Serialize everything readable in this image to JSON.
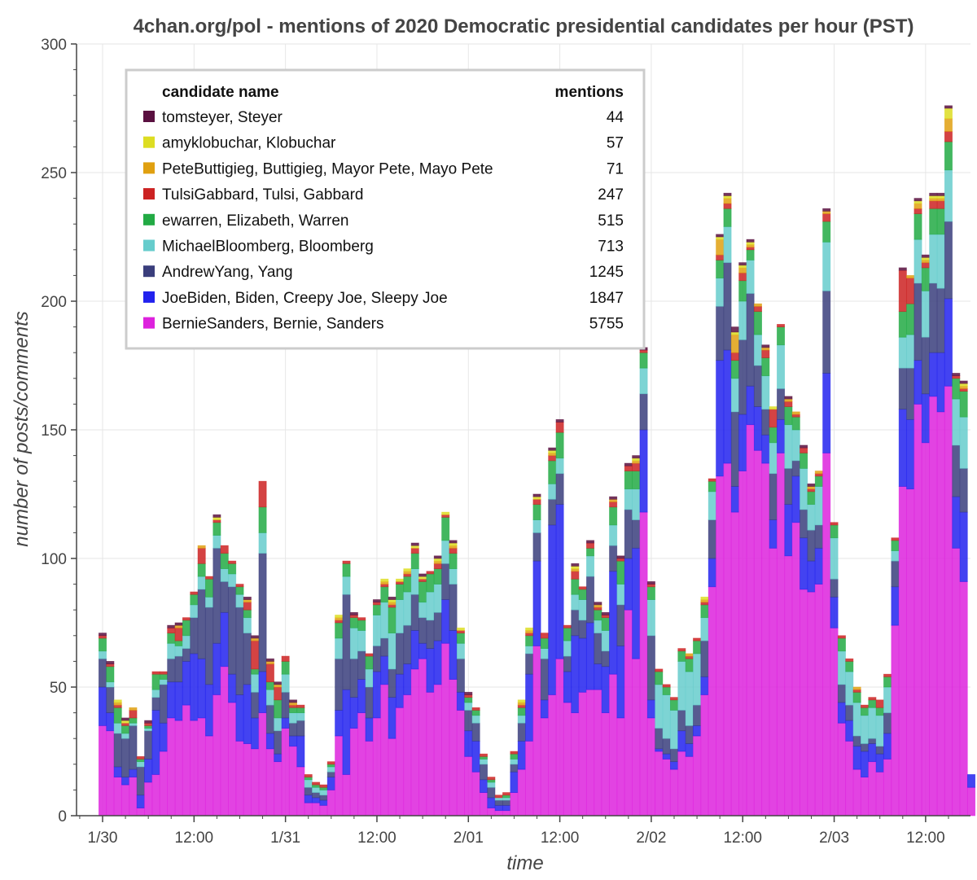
{
  "chart_data": {
    "type": "bar",
    "stacked": true,
    "title": "4chan.org/pol - mentions of 2020 Democratic presidential candidates per hour (PST)",
    "xlabel": "time",
    "ylabel": "number of posts/comments",
    "ylim": [
      0,
      300
    ],
    "yticks": [
      0,
      50,
      100,
      150,
      200,
      250,
      300
    ],
    "xticks": [
      {
        "label": "1/30",
        "hour": 0
      },
      {
        "label": "12:00",
        "hour": 12
      },
      {
        "label": "1/31",
        "hour": 24
      },
      {
        "label": "12:00",
        "hour": 36
      },
      {
        "label": "2/01",
        "hour": 48
      },
      {
        "label": "12:00",
        "hour": 60
      },
      {
        "label": "2/02",
        "hour": 72
      },
      {
        "label": "12:00",
        "hour": 84
      },
      {
        "label": "2/03",
        "hour": 96
      },
      {
        "label": "12:00",
        "hour": 108
      }
    ],
    "x_unit": "hours since 1/30 00:00 (PST)",
    "grid": true,
    "legend": {
      "position": "top-left",
      "header_name": "candidate name",
      "header_count": "mentions"
    },
    "series": [
      {
        "name": "BernieSanders, Bernie, Sanders",
        "mentions": "5755",
        "color": "#dd22dd",
        "values": [
          35,
          33,
          15,
          12,
          15,
          3,
          13,
          16,
          25,
          38,
          37,
          43,
          37,
          38,
          31,
          47,
          58,
          44,
          29,
          28,
          26,
          40,
          26,
          21,
          34,
          27,
          19,
          5,
          5,
          4,
          10,
          31,
          16,
          34,
          40,
          29,
          38,
          51,
          30,
          42,
          47,
          57,
          61,
          48,
          51,
          67,
          53,
          41,
          23,
          17,
          9,
          3,
          2,
          2,
          9,
          18,
          29,
          66,
          38,
          47,
          61,
          44,
          40,
          48,
          49,
          49,
          40,
          55,
          38,
          80,
          61,
          118,
          38,
          25,
          22,
          18,
          25,
          23,
          31,
          47,
          89,
          132,
          137,
          118,
          134,
          152,
          142,
          137,
          104,
          141,
          101,
          114,
          88,
          87,
          90,
          141,
          73,
          36,
          29,
          18,
          15,
          21,
          17,
          22,
          74,
          128,
          127,
          160,
          145,
          163,
          157,
          167,
          104,
          91,
          11
        ]
      },
      {
        "name": "JoeBiden, Biden, Creepy Joe, Sleepy Joe",
        "mentions": "1847",
        "color": "#2222ee",
        "values": [
          15,
          7,
          4,
          3,
          3,
          5,
          9,
          25,
          11,
          14,
          15,
          17,
          26,
          23,
          20,
          20,
          21,
          11,
          18,
          23,
          12,
          16,
          6,
          3,
          4,
          4,
          12,
          3,
          2,
          2,
          5,
          10,
          33,
          12,
          13,
          9,
          18,
          11,
          16,
          13,
          12,
          15,
          6,
          17,
          17,
          17,
          19,
          7,
          10,
          12,
          5,
          4,
          2,
          2,
          8,
          11,
          26,
          33,
          7,
          66,
          60,
          12,
          30,
          21,
          26,
          10,
          18,
          40,
          28,
          20,
          43,
          32,
          7,
          1,
          2,
          3,
          8,
          5,
          4,
          7,
          11,
          45,
          44,
          10,
          22,
          15,
          17,
          11,
          11,
          13,
          20,
          18,
          20,
          12,
          14,
          31,
          12,
          8,
          8,
          9,
          10,
          7,
          7,
          10,
          15,
          30,
          27,
          17,
          19,
          17,
          23,
          34,
          20,
          27,
          5
        ]
      },
      {
        "name": "AndrewYang, Yang",
        "mentions": "1245",
        "color": "#3a3e7c",
        "values": [
          11,
          10,
          13,
          15,
          17,
          11,
          11,
          5,
          15,
          9,
          10,
          5,
          14,
          27,
          30,
          37,
          12,
          34,
          34,
          20,
          10,
          46,
          11,
          9,
          10,
          5,
          6,
          3,
          2,
          2,
          2,
          20,
          37,
          15,
          11,
          12,
          10,
          7,
          11,
          16,
          15,
          14,
          10,
          11,
          11,
          14,
          18,
          13,
          8,
          7,
          6,
          4,
          2,
          2,
          3,
          7,
          8,
          11,
          16,
          10,
          12,
          6,
          10,
          7,
          18,
          12,
          6,
          10,
          16,
          19,
          11,
          14,
          25,
          8,
          6,
          5,
          8,
          7,
          8,
          14,
          15,
          21,
          34,
          29,
          29,
          36,
          16,
          10,
          18,
          12,
          14,
          6,
          11,
          12,
          9,
          32,
          7,
          7,
          6,
          4,
          3,
          2,
          3,
          8,
          10,
          16,
          20,
          30,
          22,
          27,
          25,
          30,
          20,
          17,
          0
        ]
      },
      {
        "name": "MichaelBloomberg, Bloomberg",
        "mentions": "713",
        "color": "#66cccc",
        "values": [
          3,
          2,
          4,
          2,
          1,
          2,
          1,
          3,
          2,
          6,
          4,
          5,
          5,
          5,
          4,
          5,
          5,
          5,
          5,
          6,
          7,
          8,
          6,
          5,
          7,
          4,
          3,
          3,
          2,
          2,
          2,
          8,
          7,
          12,
          8,
          7,
          12,
          14,
          14,
          13,
          13,
          10,
          6,
          11,
          11,
          9,
          6,
          6,
          3,
          3,
          2,
          2,
          1,
          1,
          2,
          3,
          3,
          5,
          4,
          6,
          6,
          6,
          6,
          8,
          8,
          5,
          8,
          8,
          8,
          8,
          12,
          10,
          14,
          17,
          17,
          15,
          19,
          21,
          20,
          9,
          11,
          11,
          14,
          13,
          15,
          13,
          12,
          13,
          12,
          17,
          17,
          12,
          16,
          10,
          15,
          19,
          16,
          13,
          13,
          13,
          11,
          12,
          12,
          10,
          4,
          12,
          13,
          17,
          18,
          19,
          21,
          20,
          18,
          20,
          0
        ]
      },
      {
        "name": "ewarren, Elizabeth, Warren",
        "mentions": "515",
        "color": "#22aa44",
        "values": [
          5,
          6,
          6,
          3,
          2,
          1,
          1,
          6,
          2,
          4,
          2,
          6,
          4,
          5,
          7,
          5,
          6,
          4,
          3,
          3,
          2,
          10,
          3,
          7,
          5,
          2,
          2,
          1,
          1,
          1,
          1,
          6,
          5,
          4,
          4,
          5,
          4,
          6,
          10,
          6,
          6,
          6,
          8,
          7,
          6,
          9,
          6,
          4,
          2,
          2,
          1,
          1,
          0,
          1,
          2,
          3,
          4,
          6,
          4,
          9,
          10,
          5,
          6,
          4,
          3,
          4,
          5,
          7,
          9,
          7,
          7,
          6,
          5,
          5,
          3,
          4,
          4,
          5,
          5,
          5,
          4,
          7,
          7,
          7,
          8,
          4,
          9,
          7,
          6,
          7,
          7,
          5,
          6,
          5,
          4,
          8,
          5,
          5,
          4,
          4,
          3,
          3,
          3,
          4,
          4,
          10,
          12,
          10,
          9,
          10,
          10,
          11,
          8,
          10,
          0
        ]
      },
      {
        "name": "TulsiGabbard, Tulsi, Gabbard",
        "mentions": "247",
        "color": "#cc2222",
        "values": [
          1,
          1,
          1,
          1,
          3,
          1,
          1,
          1,
          1,
          2,
          5,
          1,
          1,
          6,
          1,
          1,
          3,
          1,
          1,
          3,
          11,
          10,
          7,
          5,
          2,
          1,
          1,
          1,
          1,
          1,
          1,
          1,
          1,
          1,
          1,
          1,
          1,
          1,
          1,
          1,
          1,
          2,
          1,
          1,
          2,
          1,
          2,
          1,
          1,
          1,
          1,
          1,
          1,
          1,
          1,
          1,
          1,
          2,
          2,
          2,
          4,
          1,
          3,
          1,
          2,
          1,
          1,
          2,
          1,
          2,
          3,
          1,
          1,
          1,
          1,
          1,
          1,
          1,
          1,
          1,
          1,
          2,
          2,
          3,
          3,
          1,
          2,
          3,
          7,
          1,
          2,
          1,
          2,
          1,
          1,
          3,
          1,
          1,
          1,
          1,
          1,
          1,
          3,
          1,
          1,
          16,
          10,
          2,
          2,
          3,
          3,
          4,
          1,
          1,
          0
        ]
      },
      {
        "name": "PeteButtigieg, Buttigieg, Mayor Pete, Mayo Pete",
        "mentions": "71",
        "color": "#e0a010",
        "values": [
          0,
          0,
          1,
          0,
          1,
          0,
          0,
          0,
          0,
          0,
          1,
          0,
          0,
          1,
          0,
          0,
          0,
          0,
          0,
          1,
          1,
          0,
          1,
          1,
          0,
          1,
          0,
          0,
          0,
          0,
          0,
          1,
          0,
          0,
          0,
          0,
          0,
          1,
          1,
          0,
          1,
          0,
          0,
          0,
          1,
          0,
          1,
          0,
          0,
          0,
          0,
          0,
          0,
          0,
          0,
          1,
          1,
          0,
          0,
          1,
          0,
          0,
          1,
          0,
          0,
          1,
          0,
          1,
          0,
          0,
          1,
          0,
          0,
          0,
          0,
          0,
          0,
          1,
          0,
          1,
          0,
          6,
          2,
          7,
          2,
          1,
          1,
          1,
          0,
          0,
          1,
          1,
          0,
          1,
          1,
          1,
          0,
          0,
          0,
          1,
          0,
          0,
          0,
          0,
          0,
          0,
          1,
          2,
          1,
          1,
          1,
          5,
          0,
          1,
          0
        ]
      },
      {
        "name": "amyklobuchar, Klobuchar",
        "mentions": "57",
        "color": "#dddd22",
        "values": [
          0,
          0,
          1,
          1,
          0,
          0,
          0,
          0,
          0,
          0,
          0,
          0,
          0,
          0,
          0,
          1,
          0,
          0,
          0,
          0,
          0,
          0,
          0,
          0,
          0,
          0,
          0,
          0,
          0,
          0,
          0,
          1,
          0,
          0,
          0,
          0,
          0,
          1,
          1,
          1,
          1,
          1,
          1,
          0,
          1,
          1,
          1,
          1,
          0,
          0,
          0,
          0,
          0,
          0,
          0,
          1,
          1,
          1,
          0,
          1,
          0,
          0,
          1,
          0,
          0,
          0,
          0,
          0,
          0,
          0,
          1,
          0,
          0,
          0,
          0,
          0,
          0,
          0,
          0,
          1,
          0,
          1,
          1,
          1,
          1,
          1,
          0,
          0,
          1,
          0,
          0,
          0,
          0,
          0,
          0,
          0,
          0,
          0,
          0,
          0,
          0,
          0,
          0,
          0,
          0,
          0,
          0,
          1,
          1,
          1,
          1,
          4,
          0,
          1,
          0
        ]
      },
      {
        "name": "tomsteyer, Steyer",
        "mentions": "44",
        "color": "#5a1040",
        "values": [
          1,
          1,
          0,
          1,
          0,
          0,
          1,
          0,
          0,
          1,
          1,
          0,
          0,
          0,
          0,
          1,
          0,
          0,
          0,
          1,
          1,
          0,
          1,
          1,
          0,
          1,
          0,
          0,
          0,
          0,
          0,
          0,
          0,
          1,
          0,
          0,
          1,
          0,
          1,
          0,
          0,
          1,
          1,
          0,
          1,
          0,
          1,
          0,
          1,
          0,
          0,
          0,
          0,
          0,
          0,
          0,
          0,
          1,
          0,
          1,
          1,
          0,
          1,
          0,
          1,
          1,
          1,
          1,
          1,
          1,
          1,
          1,
          1,
          0,
          0,
          0,
          0,
          0,
          0,
          0,
          0,
          1,
          1,
          2,
          1,
          1,
          0,
          1,
          0,
          0,
          1,
          0,
          1,
          1,
          0,
          1,
          0,
          0,
          0,
          0,
          0,
          0,
          0,
          0,
          0,
          1,
          0,
          1,
          1,
          1,
          1,
          1,
          1,
          1,
          0
        ]
      }
    ]
  }
}
